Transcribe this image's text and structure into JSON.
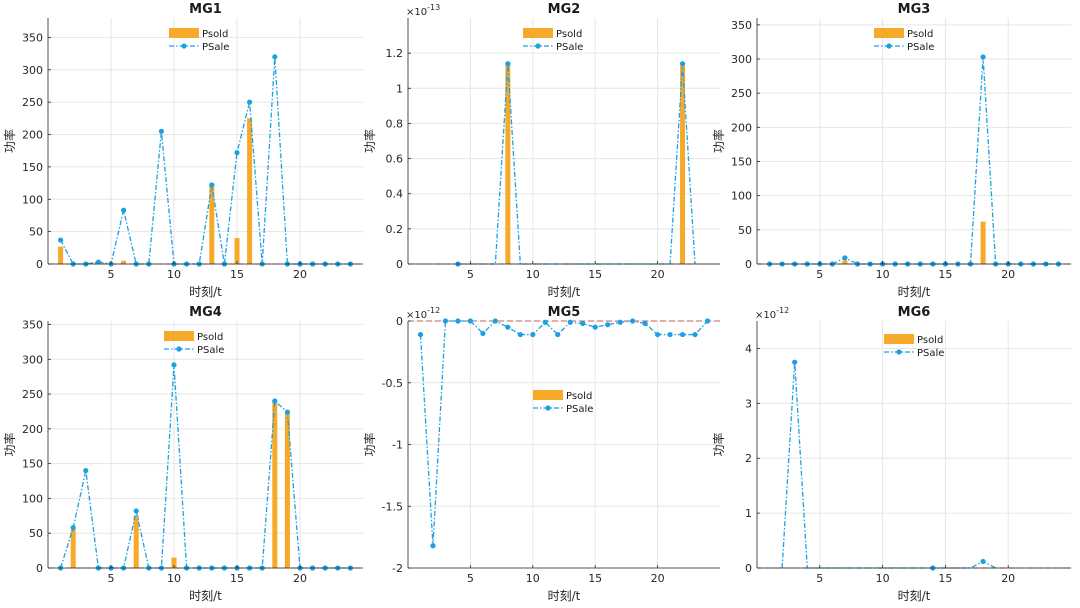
{
  "colors": {
    "psold": "#F7A929",
    "psale": "#1BA1E2",
    "grid": "#e6e6e6",
    "axis": "#262626",
    "zero": "#c0504d"
  },
  "common": {
    "xlabel": "时刻/t",
    "ylabel": "功率"
  },
  "chart_data": [
    {
      "type": "bar",
      "title": "MG1",
      "xlabel": "时刻/t",
      "ylabel": "功率",
      "xlim": [
        0,
        25
      ],
      "ylim": [
        0,
        380
      ],
      "yticks": [
        0,
        50,
        100,
        150,
        200,
        250,
        300,
        350
      ],
      "ytick_labels": [
        "0",
        "50",
        "100",
        "150",
        "200",
        "250",
        "300",
        "350"
      ],
      "xticks": [
        5,
        10,
        15,
        20
      ],
      "exponent": "",
      "grid": true,
      "legend_position": "top-center",
      "legend_offset": 0,
      "x": [
        1,
        2,
        3,
        4,
        5,
        6,
        7,
        8,
        9,
        10,
        11,
        12,
        13,
        14,
        15,
        16,
        17,
        18,
        19,
        20,
        21,
        22,
        23,
        24
      ],
      "series": [
        {
          "name": "Psold",
          "style": "bar",
          "values": [
            27,
            0,
            0,
            0,
            0,
            5,
            0,
            0,
            0,
            0,
            0,
            0,
            120,
            0,
            40,
            225,
            0,
            0,
            0,
            0,
            0,
            0,
            0,
            0
          ]
        },
        {
          "name": "PSale",
          "style": "line",
          "values": [
            37,
            0,
            0,
            3,
            0,
            83,
            0,
            0,
            205,
            0,
            0,
            0,
            122,
            0,
            172,
            250,
            0,
            320,
            0,
            0,
            0,
            0,
            0,
            0
          ]
        }
      ]
    },
    {
      "type": "bar",
      "title": "MG2",
      "xlabel": "时刻/t",
      "ylabel": "功率",
      "xlim": [
        0,
        25
      ],
      "ylim": [
        0,
        1.4
      ],
      "yticks": [
        0,
        0.2,
        0.4,
        0.6,
        0.8,
        1.0,
        1.2
      ],
      "ytick_labels": [
        "0",
        "0.2",
        "0.4",
        "0.6",
        "0.8",
        "1",
        "1.2"
      ],
      "xticks": [
        5,
        10,
        15,
        20
      ],
      "exponent": "×10",
      "exponent_power": "-13",
      "grid": true,
      "legend_position": "top-center",
      "legend_offset": 0,
      "x": [
        1,
        2,
        3,
        4,
        5,
        6,
        7,
        8,
        9,
        10,
        11,
        12,
        13,
        14,
        15,
        16,
        17,
        18,
        19,
        20,
        21,
        22,
        23,
        24
      ],
      "series": [
        {
          "name": "Psold",
          "style": "bar",
          "values": [
            0,
            0,
            0,
            0,
            0,
            0,
            0,
            1.13,
            0,
            0,
            0,
            0,
            0,
            0,
            0,
            0,
            0,
            0,
            0,
            0,
            0,
            1.13,
            0,
            0
          ]
        },
        {
          "name": "PSale",
          "style": "line",
          "values": [
            0,
            0,
            0,
            0,
            0,
            0,
            0,
            1.14,
            0,
            0,
            0,
            0,
            0,
            0,
            0,
            0,
            0,
            0,
            0,
            0,
            0,
            1.14,
            0,
            0
          ],
          "line_x": [
            4,
            7,
            8,
            9,
            21,
            22,
            23
          ],
          "line_values": [
            0,
            0,
            1.14,
            0,
            0,
            1.14,
            0
          ],
          "markers": [
            4,
            8,
            22
          ]
        }
      ]
    },
    {
      "type": "bar",
      "title": "MG3",
      "xlabel": "时刻/t",
      "ylabel": "功率",
      "xlim": [
        0,
        25
      ],
      "ylim": [
        0,
        360
      ],
      "yticks": [
        0,
        50,
        100,
        150,
        200,
        250,
        300,
        350
      ],
      "ytick_labels": [
        "0",
        "50",
        "100",
        "150",
        "200",
        "250",
        "300",
        "350"
      ],
      "xticks": [
        5,
        10,
        15,
        20
      ],
      "exponent": "",
      "grid": true,
      "legend_position": "top-center",
      "legend_offset": 0,
      "x": [
        1,
        2,
        3,
        4,
        5,
        6,
        7,
        8,
        9,
        10,
        11,
        12,
        13,
        14,
        15,
        16,
        17,
        18,
        19,
        20,
        21,
        22,
        23,
        24
      ],
      "series": [
        {
          "name": "Psold",
          "style": "bar",
          "values": [
            0,
            0,
            0,
            0,
            0,
            0,
            5,
            0,
            0,
            0,
            0,
            0,
            0,
            0,
            0,
            0,
            0,
            62,
            0,
            0,
            0,
            0,
            0,
            0
          ]
        },
        {
          "name": "PSale",
          "style": "line",
          "values": [
            0,
            0,
            0,
            0,
            0,
            0,
            9,
            0,
            0,
            0,
            0,
            0,
            0,
            0,
            0,
            0,
            0,
            303,
            0,
            0,
            0,
            0,
            0,
            0
          ]
        }
      ]
    },
    {
      "type": "bar",
      "title": "MG4",
      "xlabel": "时刻/t",
      "ylabel": "功率",
      "xlim": [
        0,
        25
      ],
      "ylim": [
        0,
        355
      ],
      "yticks": [
        0,
        50,
        100,
        150,
        200,
        250,
        300,
        350
      ],
      "ytick_labels": [
        "0",
        "50",
        "100",
        "150",
        "200",
        "250",
        "300",
        "350"
      ],
      "xticks": [
        5,
        10,
        15,
        20
      ],
      "exponent": "",
      "grid": true,
      "legend_position": "top-center",
      "legend_offset": 0,
      "x": [
        1,
        2,
        3,
        4,
        5,
        6,
        7,
        8,
        9,
        10,
        11,
        12,
        13,
        14,
        15,
        16,
        17,
        18,
        19,
        20,
        21,
        22,
        23,
        24
      ],
      "series": [
        {
          "name": "Psold",
          "style": "bar",
          "values": [
            0,
            55,
            0,
            0,
            0,
            0,
            75,
            0,
            0,
            15,
            0,
            0,
            0,
            0,
            0,
            0,
            0,
            238,
            222,
            0,
            0,
            0,
            0,
            0
          ]
        },
        {
          "name": "PSale",
          "style": "line",
          "values": [
            0,
            58,
            140,
            0,
            0,
            0,
            82,
            0,
            0,
            292,
            0,
            0,
            0,
            0,
            0,
            0,
            0,
            240,
            224,
            0,
            0,
            0,
            0,
            0
          ]
        }
      ]
    },
    {
      "type": "line",
      "title": "MG5",
      "xlabel": "时刻/t",
      "ylabel": "功率",
      "xlim": [
        0,
        25
      ],
      "ylim": [
        -2,
        0
      ],
      "yticks": [
        -2,
        -1.5,
        -1,
        -0.5,
        0
      ],
      "ytick_labels": [
        "-2",
        "-1.5",
        "-1",
        "-0.5",
        "0"
      ],
      "xticks": [
        5,
        10,
        15,
        20
      ],
      "exponent": "×10",
      "exponent_power": "-12",
      "grid": true,
      "legend_position": "center",
      "legend_offset": 0,
      "x": [
        1,
        2,
        3,
        4,
        5,
        6,
        7,
        8,
        9,
        10,
        11,
        12,
        13,
        14,
        15,
        16,
        17,
        18,
        19,
        20,
        21,
        22,
        23,
        24
      ],
      "series": [
        {
          "name": "Psold",
          "style": "bar",
          "values": [
            0,
            0,
            0,
            0,
            0,
            0,
            0,
            0,
            0,
            0,
            0,
            0,
            0,
            0,
            0,
            0,
            0,
            0,
            0,
            0,
            0,
            0,
            0,
            0
          ]
        },
        {
          "name": "PSale",
          "style": "line",
          "values": [
            -0.11,
            -1.82,
            0,
            0,
            0,
            -0.1,
            0,
            -0.05,
            -0.11,
            -0.11,
            -0.01,
            -0.11,
            -0.01,
            -0.02,
            -0.05,
            -0.03,
            -0.01,
            0,
            -0.02,
            -0.11,
            -0.11,
            -0.11,
            -0.11,
            0
          ]
        }
      ]
    },
    {
      "type": "line",
      "title": "MG6",
      "xlabel": "时刻/t",
      "ylabel": "功率",
      "xlim": [
        0,
        25
      ],
      "ylim": [
        0,
        4.5
      ],
      "yticks": [
        0,
        1,
        2,
        3,
        4
      ],
      "ytick_labels": [
        "0",
        "1",
        "2",
        "3",
        "4"
      ],
      "xticks": [
        5,
        10,
        15,
        20
      ],
      "exponent": "×10",
      "exponent_power": "-12",
      "grid": true,
      "legend_position": "top-center",
      "legend_offset": 0,
      "x": [
        1,
        2,
        3,
        4,
        5,
        6,
        7,
        8,
        9,
        10,
        11,
        12,
        13,
        14,
        15,
        16,
        17,
        18,
        19,
        20,
        21,
        22,
        23,
        24
      ],
      "series": [
        {
          "name": "Psold",
          "style": "bar",
          "values": [
            0,
            0,
            0,
            0,
            0,
            0,
            0,
            0,
            0,
            0,
            0,
            0,
            0,
            0,
            0,
            0,
            0,
            0,
            0,
            0,
            0,
            0,
            0,
            0
          ]
        },
        {
          "name": "PSale",
          "style": "line",
          "values": [
            0,
            0,
            3.75,
            0,
            0,
            0,
            0,
            0,
            0,
            0,
            0,
            0,
            0,
            0,
            0,
            0,
            0,
            0.12,
            0,
            0,
            0,
            0,
            0,
            0
          ],
          "line_x": [
            2,
            3,
            4,
            17,
            18,
            19
          ],
          "line_values": [
            0,
            3.75,
            0,
            0,
            0.12,
            0
          ],
          "markers": [
            3,
            14,
            18
          ]
        }
      ]
    }
  ]
}
